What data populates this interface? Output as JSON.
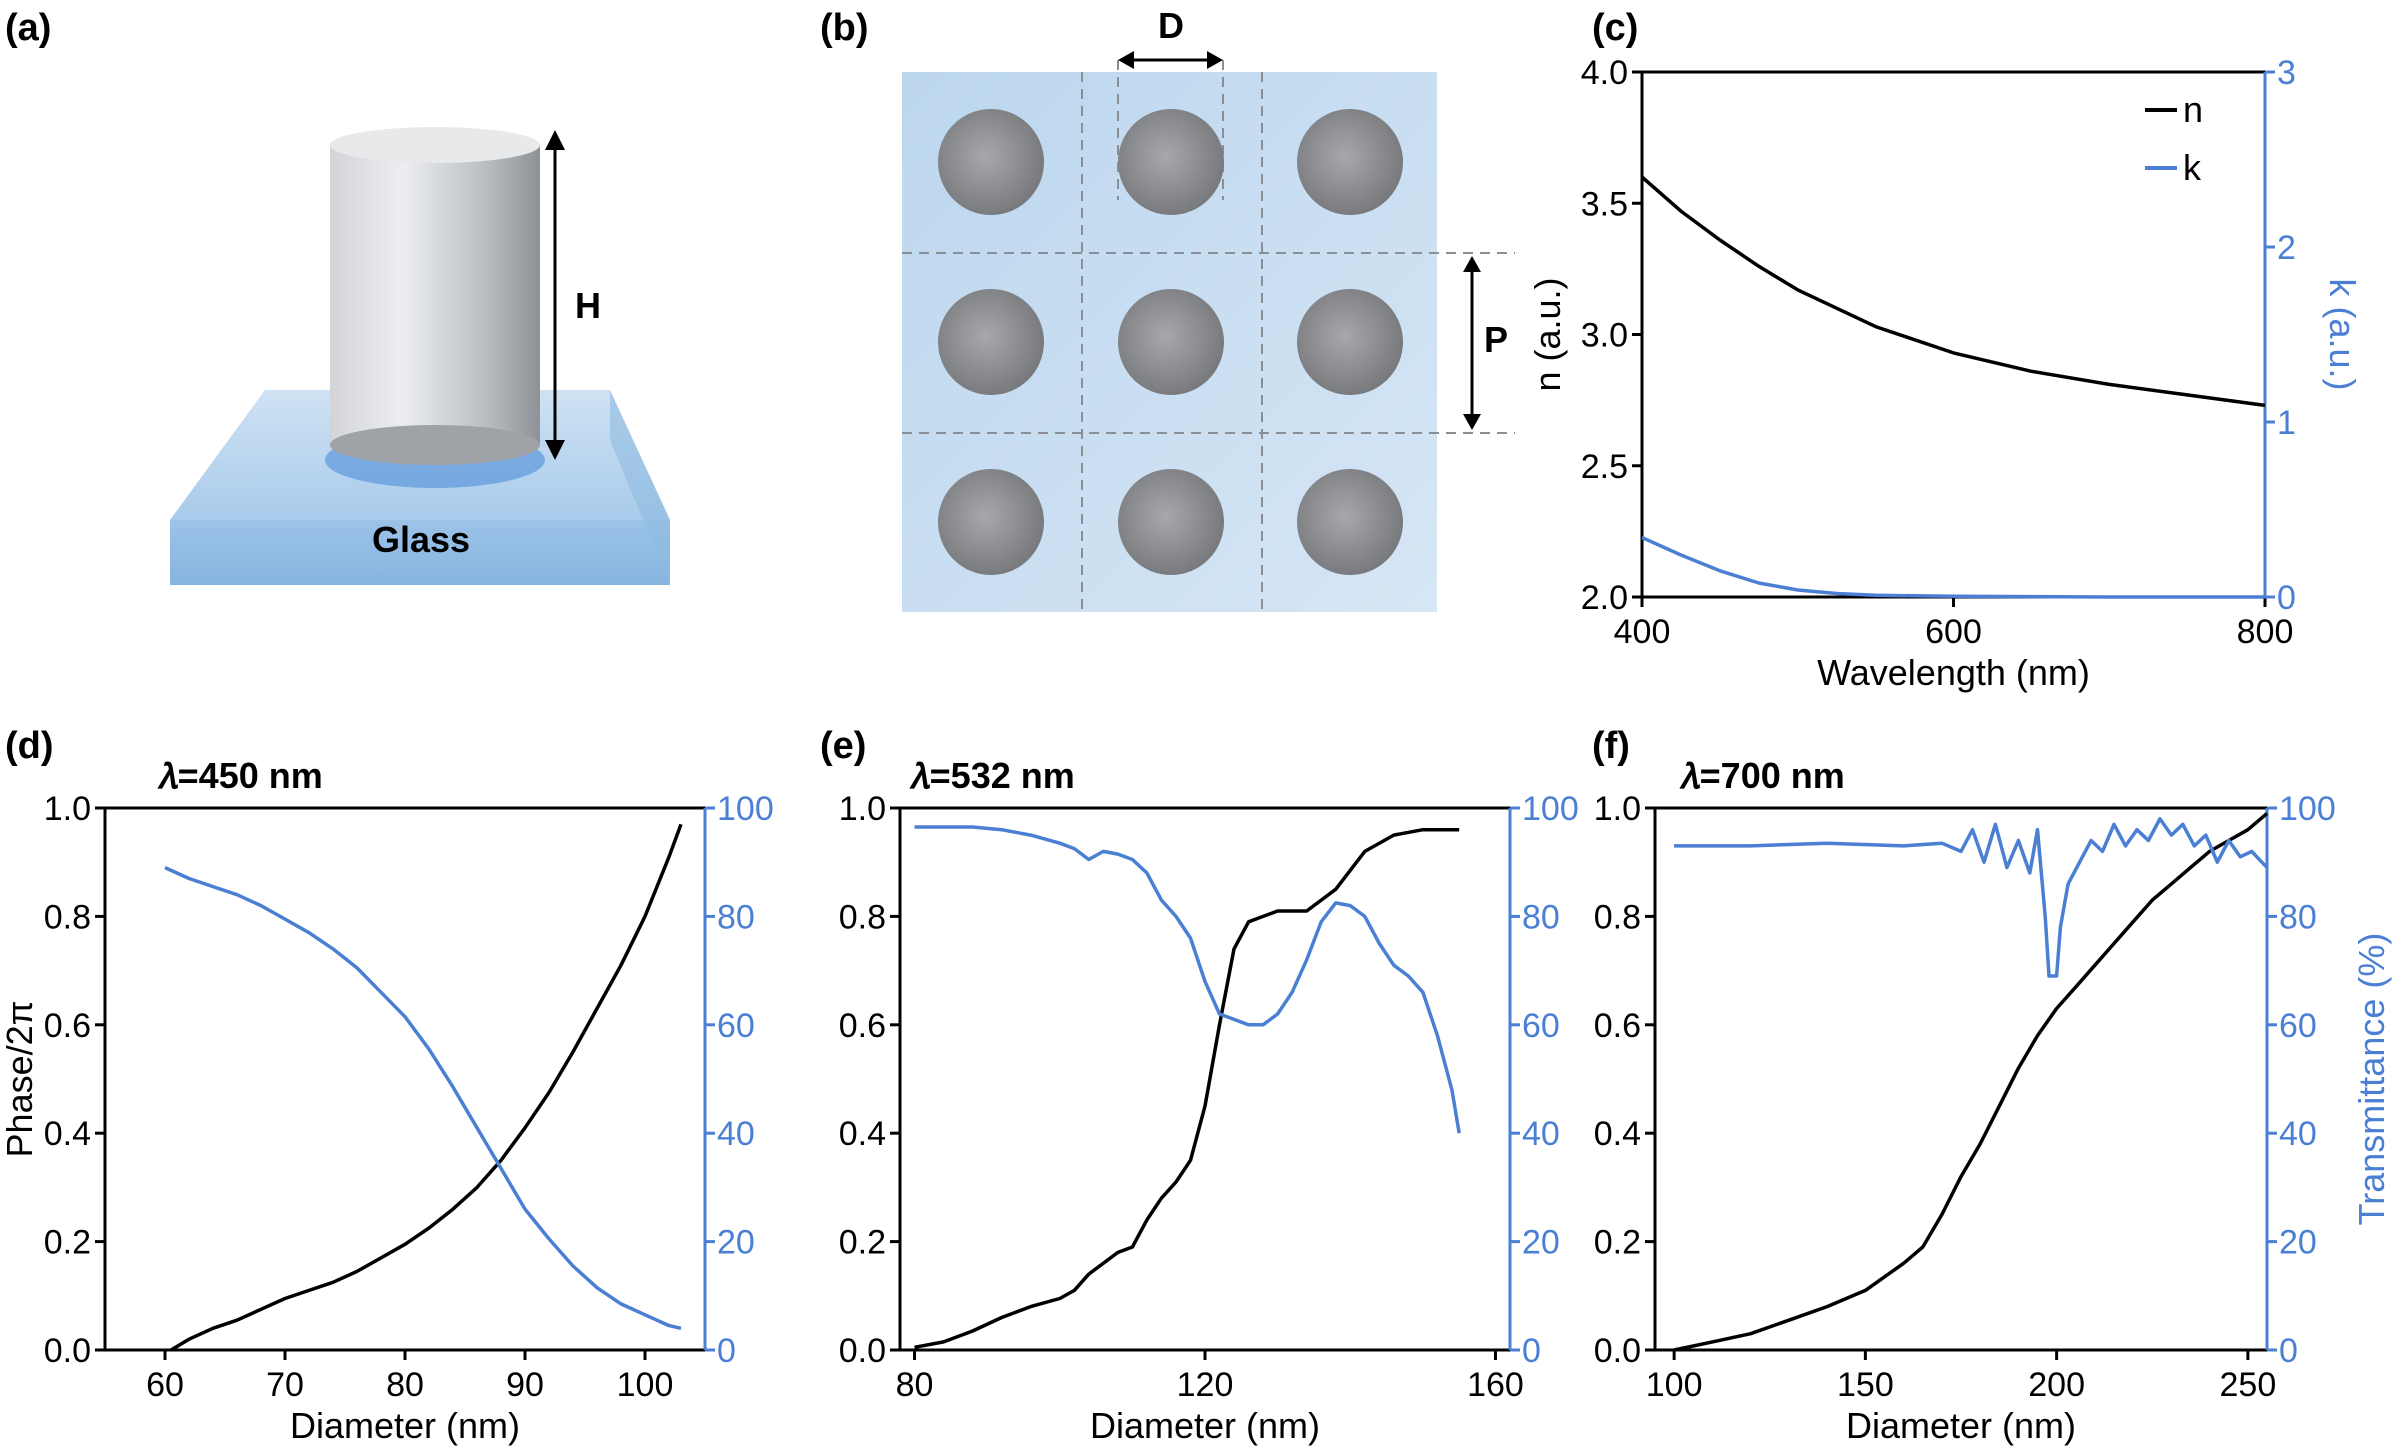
{
  "colors": {
    "black_series": "#000000",
    "blue_series": "#4a7fd4",
    "glass": "#bcd6ee"
  },
  "panels": {
    "a": {
      "label": "(a)",
      "glass_label": "Glass",
      "height_label": "H"
    },
    "b": {
      "label": "(b)",
      "diameter_label": "D",
      "period_label": "P"
    },
    "c": {
      "label": "(c)"
    },
    "d": {
      "label": "(d)",
      "wavelength_label": "𝜆=450 nm"
    },
    "e": {
      "label": "(e)",
      "wavelength_label": "𝜆=532 nm"
    },
    "f": {
      "label": "(f)",
      "wavelength_label": "𝜆=700 nm"
    }
  },
  "chart_data": [
    {
      "panel": "c",
      "type": "line",
      "xlabel": "Wavelength (nm)",
      "ylabel": "n (a.u.)",
      "ylabel_right": "k (a.u.)",
      "xlim": [
        400,
        800
      ],
      "ylim": [
        2.0,
        4.0
      ],
      "ylim_right": [
        0,
        3
      ],
      "xticks": [
        "400",
        "600",
        "800"
      ],
      "yticks": [
        "2.0",
        "2.5",
        "3.0",
        "3.5",
        "4.0"
      ],
      "yticks_right": [
        "0",
        "1",
        "2",
        "3"
      ],
      "legend_position": "top-right",
      "series": [
        {
          "name": "n",
          "axis": "left",
          "color": "#000000",
          "x": [
            400,
            425,
            450,
            475,
            500,
            550,
            600,
            650,
            700,
            750,
            800
          ],
          "y": [
            3.6,
            3.47,
            3.36,
            3.26,
            3.17,
            3.03,
            2.93,
            2.86,
            2.81,
            2.77,
            2.73
          ]
        },
        {
          "name": "k",
          "axis": "right",
          "color": "#4a7fd4",
          "x": [
            400,
            425,
            450,
            475,
            500,
            525,
            550,
            600,
            700,
            800
          ],
          "y": [
            0.34,
            0.24,
            0.15,
            0.08,
            0.04,
            0.02,
            0.01,
            0.004,
            0.0,
            0.0
          ]
        }
      ]
    },
    {
      "panel": "d",
      "type": "line",
      "xlabel": "Diameter (nm)",
      "ylabel": "Phase/2π",
      "ylabel_right": "",
      "xlim": [
        55,
        105
      ],
      "ylim": [
        0,
        1
      ],
      "ylim_right": [
        0,
        100
      ],
      "xticks": [
        "60",
        "70",
        "80",
        "90",
        "100"
      ],
      "yticks": [
        "0.0",
        "0.2",
        "0.4",
        "0.6",
        "0.8",
        "1.0"
      ],
      "yticks_right": [
        "0",
        "20",
        "40",
        "60",
        "80",
        "100"
      ],
      "series": [
        {
          "axis": "left",
          "color": "#000000",
          "x": [
            60.5,
            62,
            64,
            66,
            68,
            70,
            72,
            74,
            76,
            78,
            80,
            82,
            84,
            86,
            88,
            90,
            92,
            94,
            96,
            98,
            100,
            102,
            103
          ],
          "y": [
            0.0,
            0.02,
            0.04,
            0.055,
            0.075,
            0.095,
            0.11,
            0.125,
            0.145,
            0.17,
            0.195,
            0.225,
            0.26,
            0.3,
            0.35,
            0.41,
            0.475,
            0.55,
            0.63,
            0.71,
            0.8,
            0.91,
            0.97
          ]
        },
        {
          "axis": "right",
          "color": "#4a7fd4",
          "x": [
            60,
            62,
            64,
            66,
            68,
            70,
            72,
            74,
            76,
            78,
            80,
            82,
            84,
            86,
            88,
            90,
            92,
            94,
            96,
            98,
            100,
            102,
            103
          ],
          "y": [
            89,
            87,
            85.5,
            84,
            82,
            79.5,
            77,
            74,
            70.5,
            66,
            61.5,
            55.5,
            48.5,
            41,
            33.5,
            26,
            20.5,
            15.5,
            11.5,
            8.5,
            6.5,
            4.5,
            4
          ]
        }
      ]
    },
    {
      "panel": "e",
      "type": "line",
      "xlabel": "Diameter (nm)",
      "ylabel": "",
      "ylabel_right": "",
      "xlim": [
        78,
        162
      ],
      "ylim": [
        0,
        1
      ],
      "ylim_right": [
        0,
        100
      ],
      "xticks": [
        "80",
        "120",
        "160"
      ],
      "yticks": [
        "0.0",
        "0.2",
        "0.4",
        "0.6",
        "0.8",
        "1.0"
      ],
      "yticks_right": [
        "0",
        "20",
        "40",
        "60",
        "80",
        "100"
      ],
      "series": [
        {
          "axis": "left",
          "color": "#000000",
          "x": [
            80,
            84,
            88,
            92,
            96,
            100,
            102,
            104,
            108,
            110,
            112,
            114,
            116,
            118,
            120,
            122,
            124,
            126,
            128,
            130,
            134,
            138,
            142,
            146,
            150,
            155
          ],
          "y": [
            0.005,
            0.015,
            0.035,
            0.06,
            0.08,
            0.095,
            0.11,
            0.14,
            0.18,
            0.19,
            0.24,
            0.28,
            0.31,
            0.35,
            0.45,
            0.6,
            0.74,
            0.79,
            0.8,
            0.81,
            0.81,
            0.85,
            0.92,
            0.95,
            0.96,
            0.96
          ]
        },
        {
          "axis": "right",
          "color": "#4a7fd4",
          "x": [
            80,
            88,
            92,
            96,
            100,
            102,
            104,
            106,
            108,
            110,
            112,
            114,
            116,
            118,
            120,
            122,
            124,
            126,
            128,
            130,
            132,
            134,
            136,
            138,
            140,
            142,
            144,
            146,
            148,
            150,
            152,
            154,
            155
          ],
          "y": [
            96.5,
            96.5,
            96,
            95,
            93.5,
            92.5,
            90.5,
            92,
            91.5,
            90.5,
            88,
            83,
            80,
            76,
            68,
            62,
            61,
            60,
            60,
            62,
            66,
            72,
            79,
            82.5,
            82,
            80,
            75,
            71,
            69,
            66,
            58,
            48,
            40
          ]
        }
      ]
    },
    {
      "panel": "f",
      "type": "line",
      "xlabel": "Diameter (nm)",
      "ylabel": "",
      "ylabel_right": "Transmittance (%)",
      "xlim": [
        95,
        255
      ],
      "ylim": [
        0,
        1
      ],
      "ylim_right": [
        0,
        100
      ],
      "xticks": [
        "100",
        "150",
        "200",
        "250"
      ],
      "yticks": [
        "0.0",
        "0.2",
        "0.4",
        "0.6",
        "0.8",
        "1.0"
      ],
      "yticks_right": [
        "0",
        "20",
        "40",
        "60",
        "80",
        "100"
      ],
      "series": [
        {
          "axis": "left",
          "color": "#000000",
          "x": [
            100,
            110,
            120,
            130,
            140,
            150,
            160,
            165,
            170,
            175,
            180,
            185,
            190,
            195,
            200,
            205,
            210,
            215,
            220,
            225,
            230,
            235,
            240,
            245,
            250,
            255
          ],
          "y": [
            0.0,
            0.015,
            0.03,
            0.055,
            0.08,
            0.11,
            0.16,
            0.19,
            0.25,
            0.32,
            0.38,
            0.45,
            0.52,
            0.58,
            0.63,
            0.67,
            0.71,
            0.75,
            0.79,
            0.83,
            0.86,
            0.89,
            0.92,
            0.94,
            0.96,
            0.99
          ]
        },
        {
          "axis": "right",
          "color": "#4a7fd4",
          "x": [
            100,
            120,
            140,
            160,
            170,
            175,
            178,
            181,
            184,
            187,
            190,
            193,
            195,
            197,
            198,
            200,
            201,
            203,
            206,
            209,
            212,
            215,
            218,
            221,
            224,
            227,
            230,
            233,
            236,
            239,
            242,
            245,
            248,
            251,
            255
          ],
          "y": [
            93,
            93,
            93.5,
            93,
            93.5,
            92,
            96,
            90,
            97,
            89,
            94,
            88,
            96,
            80,
            69,
            69,
            78,
            86,
            90,
            94,
            92,
            97,
            93,
            96,
            94,
            98,
            95,
            97,
            93,
            95,
            90,
            94,
            91,
            92,
            89
          ]
        }
      ]
    }
  ]
}
